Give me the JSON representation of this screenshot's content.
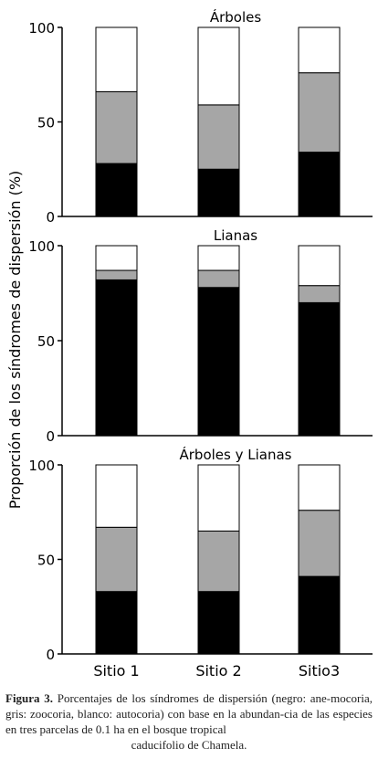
{
  "colors": {
    "anemocoria": "#000000",
    "zoocoria": "#a6a6a6",
    "autocoria": "#ffffff",
    "axis": "#000000"
  },
  "y_axis_label": "Proporción de los síndromes de dispersión (%)",
  "x_axis_categories": [
    "Sitio 1",
    "Sitio 2",
    "Sitio3"
  ],
  "chart_data": [
    {
      "type": "bar",
      "stacked": true,
      "title": "Árboles",
      "categories": [
        "Sitio 1",
        "Sitio 2",
        "Sitio3"
      ],
      "series": [
        {
          "name": "negro: anemocoria",
          "values": [
            28,
            25,
            34
          ]
        },
        {
          "name": "gris: zoocoria",
          "values": [
            38,
            34,
            42
          ]
        },
        {
          "name": "blanco: autocoria",
          "values": [
            34,
            41,
            24
          ]
        }
      ],
      "ylim": [
        0,
        100
      ],
      "yticks": [
        0,
        50,
        100
      ]
    },
    {
      "type": "bar",
      "stacked": true,
      "title": "Lianas",
      "categories": [
        "Sitio 1",
        "Sitio 2",
        "Sitio3"
      ],
      "series": [
        {
          "name": "negro: anemocoria",
          "values": [
            82,
            78,
            70
          ]
        },
        {
          "name": "gris: zoocoria",
          "values": [
            5,
            9,
            9
          ]
        },
        {
          "name": "blanco: autocoria",
          "values": [
            13,
            13,
            21
          ]
        }
      ],
      "ylim": [
        0,
        100
      ],
      "yticks": [
        0,
        50,
        100
      ]
    },
    {
      "type": "bar",
      "stacked": true,
      "title": "Árboles y Lianas",
      "categories": [
        "Sitio 1",
        "Sitio 2",
        "Sitio3"
      ],
      "series": [
        {
          "name": "negro: anemocoria",
          "values": [
            33,
            33,
            41
          ]
        },
        {
          "name": "gris: zoocoria",
          "values": [
            34,
            32,
            35
          ]
        },
        {
          "name": "blanco: autocoria",
          "values": [
            33,
            35,
            24
          ]
        }
      ],
      "ylim": [
        0,
        100
      ],
      "yticks": [
        0,
        50,
        100
      ]
    }
  ],
  "caption": {
    "label": "Figura 3.",
    "text": "Porcentajes de los síndromes de dispersión (negro: ane-mocoria, gris: zoocoria, blanco: autocoria) con base en la abundan-cia de las especies en tres parcelas de 0.1 ha en el bosque tropical",
    "last_line": "caducifolio de Chamela."
  }
}
